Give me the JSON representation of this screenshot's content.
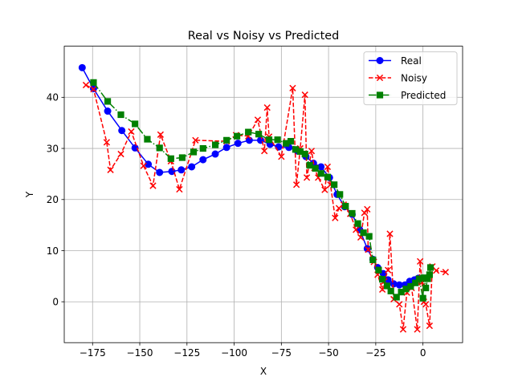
{
  "chart_data": {
    "type": "line",
    "title": "Real vs Noisy vs Predicted",
    "xlabel": "X",
    "ylabel": "Y",
    "xlim": [
      -190,
      21
    ],
    "ylim": [
      -8,
      50
    ],
    "xticks": [
      -175,
      -150,
      -125,
      -100,
      -75,
      -50,
      -25,
      0
    ],
    "yticks": [
      0,
      10,
      20,
      30,
      40
    ],
    "grid": true,
    "legend_position": "top-right",
    "series": [
      {
        "name": "Real",
        "color": "#0000ff",
        "linestyle": "solid",
        "marker": "circle",
        "x": [
          -180.5,
          -174.5,
          -167.0,
          -159.5,
          -152.5,
          -145.5,
          -139.5,
          -133.0,
          -128.0,
          -122.5,
          -116.5,
          -110.0,
          -104.0,
          -98.0,
          -92.0,
          -86.0,
          -81.0,
          -76.5,
          -71.0,
          -66.5,
          -62.0,
          -58.0,
          -54.0,
          -49.5,
          -45.5,
          -41.5,
          -37.5,
          -33.5,
          -29.5,
          -26.5,
          -24.0,
          -21.0,
          -18.5,
          -15.5,
          -12.5,
          -9.5,
          -7.0,
          -4.5,
          -2.5,
          -0.5
        ],
        "y": [
          45.8,
          41.7,
          37.3,
          33.5,
          30.1,
          26.9,
          25.3,
          25.5,
          25.8,
          26.4,
          27.8,
          28.9,
          30.2,
          31.0,
          31.6,
          31.6,
          30.8,
          30.3,
          30.2,
          29.5,
          28.4,
          27.1,
          26.4,
          24.3,
          21.0,
          18.6,
          17.1,
          14.1,
          10.4,
          8.3,
          6.7,
          5.5,
          4.3,
          3.5,
          3.3,
          3.3,
          4.0,
          4.3,
          4.6,
          4.6
        ]
      },
      {
        "name": "Noisy",
        "color": "#ff0000",
        "linestyle": "dashed",
        "marker": "x",
        "x": [
          -178.5,
          -174.5,
          -167.5,
          -165.5,
          -160.0,
          -154.5,
          -148.0,
          -143.0,
          -139.0,
          -133.5,
          -129.0,
          -120.5,
          -104.0,
          -99.0,
          -92.5,
          -87.5,
          -84.0,
          -82.5,
          -81.5,
          -75.0,
          -69.0,
          -67.0,
          -65.0,
          -62.5,
          -61.5,
          -59.0,
          -57.5,
          -55.5,
          -52.0,
          -50.5,
          -49.0,
          -46.5,
          -44.5,
          -42.0,
          -38.5,
          -35.5,
          -33.0,
          -31.0,
          -29.5,
          -29.0,
          -26.0,
          -24.0,
          -21.5,
          -20.5,
          -18.5,
          -17.5,
          -15.5,
          -12.5,
          -10.5,
          -8.5,
          -6.0,
          -3.0,
          -1.5,
          -0.5,
          0.5,
          1.5,
          3.5,
          5.0,
          7.0,
          12.0
        ],
        "y": [
          42.4,
          41.6,
          31.2,
          25.8,
          28.9,
          33.3,
          26.6,
          22.7,
          32.7,
          27.5,
          22.0,
          31.6,
          31.4,
          32.6,
          32.4,
          35.6,
          29.5,
          38.0,
          32.3,
          28.4,
          41.8,
          22.9,
          30.0,
          40.5,
          24.3,
          29.5,
          26.2,
          24.3,
          21.9,
          26.4,
          22.9,
          16.4,
          18.3,
          19.0,
          17.2,
          14.1,
          12.6,
          17.4,
          18.1,
          10.2,
          7.8,
          5.3,
          2.4,
          4.0,
          6.2,
          13.3,
          0.5,
          -0.5,
          -5.4,
          1.8,
          2.7,
          -5.4,
          7.9,
          3.8,
          0.0,
          -0.5,
          -4.7,
          6.9,
          6.1,
          5.8
        ]
      },
      {
        "name": "Predicted",
        "color": "#008000",
        "linestyle": "dashdot",
        "marker": "square",
        "x": [
          -174.5,
          -167.0,
          -160.0,
          -152.5,
          -146.0,
          -139.5,
          -133.5,
          -127.5,
          -121.5,
          -116.5,
          -110.0,
          -104.0,
          -98.5,
          -92.5,
          -87.0,
          -81.5,
          -77.0,
          -72.5,
          -70.0,
          -67.5,
          -65.0,
          -62.5,
          -60.0,
          -57.0,
          -54.0,
          -50.5,
          -47.0,
          -44.0,
          -41.0,
          -37.5,
          -34.5,
          -31.5,
          -28.5,
          -26.5,
          -23.5,
          -21.5,
          -19.0,
          -17.0,
          -14.0,
          -11.5,
          -9.0,
          -6.5,
          -4.0,
          -2.0,
          0.0,
          0.5,
          1.5,
          2.5,
          3.5,
          4.0
        ],
        "y": [
          42.9,
          39.2,
          36.6,
          34.8,
          31.8,
          30.1,
          28.0,
          28.2,
          29.3,
          30.0,
          30.7,
          31.6,
          32.4,
          33.2,
          32.8,
          31.7,
          31.7,
          31.0,
          31.4,
          29.8,
          29.4,
          28.9,
          26.7,
          26.1,
          25.1,
          24.4,
          22.9,
          21.0,
          18.7,
          17.3,
          15.3,
          13.5,
          12.8,
          8.2,
          6.2,
          4.4,
          3.1,
          2.1,
          0.9,
          1.9,
          2.5,
          3.0,
          3.7,
          4.5,
          0.7,
          4.7,
          2.7,
          4.5,
          5.3,
          6.7
        ]
      }
    ]
  }
}
